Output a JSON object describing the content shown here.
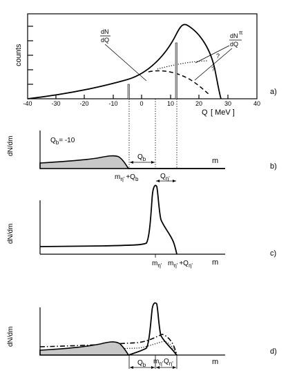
{
  "panel_a": {
    "ylabel": "counts",
    "xlabel": "Q",
    "xunit": "[ MeV ]",
    "xticks": [
      "-40",
      "-30",
      "-20",
      "-10",
      "0",
      "10",
      "20",
      "30",
      "40"
    ],
    "curve_label_dN": "dN",
    "curve_label_dQ": "dQ",
    "curve_label_pi_dN": "dN",
    "curve_label_pi_sup": "π",
    "curve_label_pi_dQ": "dQ",
    "question_1": "?",
    "question_2": "?",
    "panel_label": "a)"
  },
  "panel_b": {
    "ylabel": "dN/dm",
    "qb_label": "Q",
    "qb_sub": "b",
    "qb_value": "= -10",
    "gap_qb_main": "Q",
    "gap_qb_sub": "b",
    "gap_qeta_main": "Q",
    "gap_qeta_sub": "η'",
    "axis_m": "m",
    "threshold_main": "m",
    "threshold_sub": "η'",
    "threshold_plus": "+Q",
    "threshold_plus_sub": "b",
    "panel_label": "b)"
  },
  "panel_c": {
    "ylabel": "dN/dm",
    "axis_m": "m",
    "mass_main": "m",
    "mass_sub": "η'",
    "threshold_main": "m",
    "threshold_sub": "η'",
    "threshold_plus": "+Q",
    "threshold_plus_sub": "η'",
    "panel_label": "c)"
  },
  "panel_d": {
    "ylabel": "dN/dm",
    "axis_m": "m",
    "qb_main": "Q",
    "qb_sub": "b",
    "mass_main": "m",
    "mass_sub": "η'",
    "qeta_main": "Q",
    "qeta_sub": "η'",
    "panel_label": "d)"
  }
}
